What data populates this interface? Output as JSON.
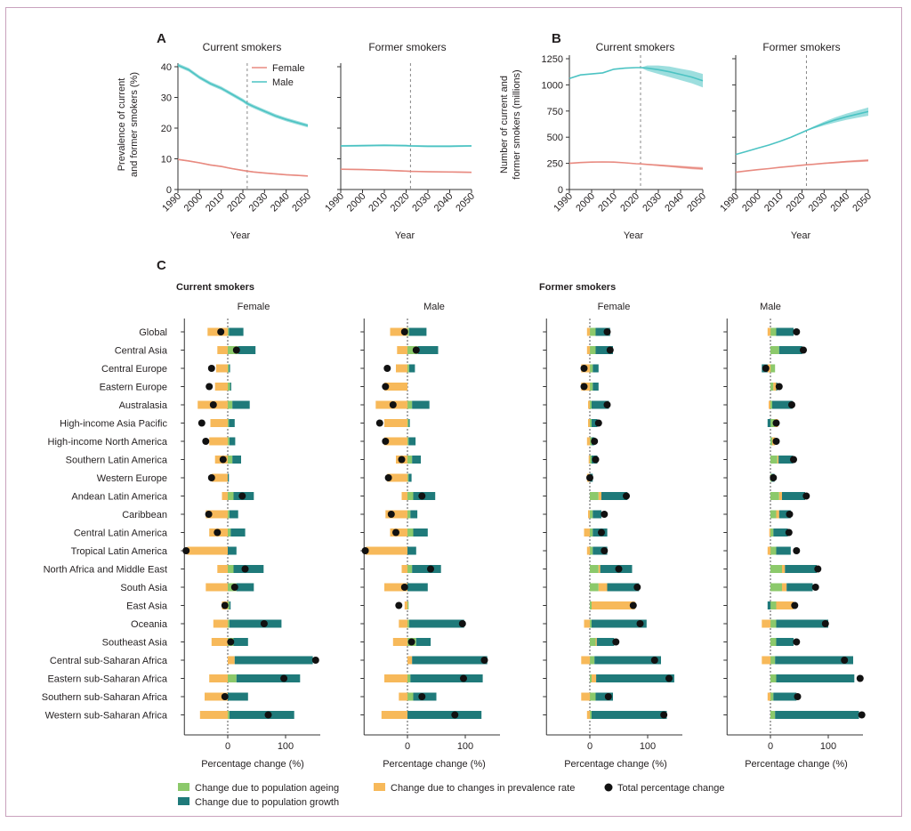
{
  "colors": {
    "female": "#e88a80",
    "male": "#4cc3c3",
    "ageing": "#8cc96b",
    "prevalence": "#f7b95a",
    "growth": "#1f7a7a",
    "total": "#111111",
    "dashed": "#888888"
  },
  "chart_data": [
    {
      "id": "A",
      "type": "line",
      "panel_letter": "A",
      "ylabel_line1": "Prevalence of current",
      "ylabel_line2": "and former smokers (%)",
      "ylim": [
        0,
        40
      ],
      "yticks": [
        "0",
        "10",
        "20",
        "30",
        "40"
      ],
      "xlim": [
        1990,
        2050
      ],
      "xticks": [
        "1990",
        "2000",
        "2010",
        "2020",
        "2030",
        "2040",
        "2050"
      ],
      "xlabel": "Year",
      "forecast_start": 2022,
      "legend": [
        {
          "name": "Female"
        },
        {
          "name": "Male"
        }
      ],
      "subplots": [
        {
          "title": "Current smokers",
          "x": [
            1990,
            1995,
            2000,
            2005,
            2010,
            2015,
            2020,
            2022,
            2025,
            2030,
            2035,
            2040,
            2045,
            2050
          ],
          "series": [
            {
              "name": "Male",
              "values": [
                40.5,
                39.0,
                36.5,
                34.5,
                33.0,
                31.0,
                29.0,
                28.0,
                27.0,
                25.5,
                24.0,
                22.8,
                21.8,
                20.8
              ],
              "band": 0.6
            },
            {
              "name": "Female",
              "values": [
                9.8,
                9.3,
                8.7,
                8.0,
                7.5,
                6.8,
                6.2,
                6.0,
                5.7,
                5.4,
                5.1,
                4.8,
                4.6,
                4.4
              ],
              "band": 0.2
            }
          ]
        },
        {
          "title": "Former smokers",
          "x": [
            1990,
            2000,
            2010,
            2020,
            2022,
            2030,
            2040,
            2050
          ],
          "series": [
            {
              "name": "Male",
              "values": [
                14.2,
                14.3,
                14.4,
                14.3,
                14.2,
                14.1,
                14.1,
                14.2
              ],
              "band": 0.3
            },
            {
              "name": "Female",
              "values": [
                6.6,
                6.5,
                6.3,
                6.0,
                5.9,
                5.8,
                5.7,
                5.6
              ],
              "band": 0.2
            }
          ]
        }
      ]
    },
    {
      "id": "B",
      "type": "line",
      "panel_letter": "B",
      "ylabel_line1": "Number of current and",
      "ylabel_line2": "former smokers (millions)",
      "ylim": [
        0,
        1250
      ],
      "yticks": [
        "0",
        "250",
        "500",
        "750",
        "1000",
        "1250"
      ],
      "xlim": [
        1990,
        2050
      ],
      "xticks": [
        "1990",
        "2000",
        "2010",
        "2020",
        "2030",
        "2040",
        "2050"
      ],
      "xlabel": "Year",
      "forecast_start": 2022,
      "subplots": [
        {
          "title": "Current smokers",
          "x": [
            1990,
            1995,
            2000,
            2005,
            2010,
            2015,
            2020,
            2022,
            2025,
            2030,
            2035,
            2040,
            2045,
            2050
          ],
          "series": [
            {
              "name": "Male",
              "values": [
                1060,
                1095,
                1105,
                1115,
                1150,
                1160,
                1165,
                1165,
                1160,
                1145,
                1125,
                1100,
                1075,
                1040
              ],
              "band_up": [
                0,
                0,
                0,
                0,
                0,
                0,
                0,
                0,
                25,
                40,
                50,
                55,
                60,
                65
              ],
              "band_dn": [
                0,
                0,
                0,
                0,
                0,
                0,
                0,
                0,
                25,
                40,
                50,
                55,
                60,
                65
              ]
            },
            {
              "name": "Female",
              "values": [
                250,
                258,
                262,
                264,
                262,
                255,
                247,
                245,
                240,
                232,
                224,
                215,
                207,
                200
              ],
              "band_up": [
                0,
                0,
                0,
                0,
                0,
                0,
                0,
                0,
                5,
                8,
                10,
                12,
                13,
                14
              ],
              "band_dn": [
                0,
                0,
                0,
                0,
                0,
                0,
                0,
                0,
                5,
                8,
                10,
                12,
                13,
                14
              ]
            }
          ]
        },
        {
          "title": "Former smokers",
          "x": [
            1990,
            1995,
            2000,
            2005,
            2010,
            2015,
            2020,
            2022,
            2025,
            2030,
            2035,
            2040,
            2045,
            2050
          ],
          "series": [
            {
              "name": "Male",
              "values": [
                335,
                365,
                395,
                425,
                460,
                500,
                545,
                565,
                590,
                630,
                665,
                695,
                720,
                745
              ],
              "band_up": [
                0,
                0,
                0,
                0,
                0,
                0,
                0,
                5,
                10,
                18,
                25,
                30,
                35,
                40
              ],
              "band_dn": [
                0,
                0,
                0,
                0,
                0,
                0,
                0,
                5,
                10,
                18,
                25,
                30,
                35,
                40
              ]
            },
            {
              "name": "Female",
              "values": [
                165,
                178,
                190,
                200,
                212,
                222,
                232,
                236,
                241,
                250,
                258,
                266,
                272,
                278
              ],
              "band_up": [
                0,
                0,
                0,
                0,
                0,
                0,
                0,
                2,
                4,
                6,
                8,
                9,
                10,
                11
              ],
              "band_dn": [
                0,
                0,
                0,
                0,
                0,
                0,
                0,
                2,
                4,
                6,
                8,
                9,
                10,
                11
              ]
            }
          ]
        }
      ]
    },
    {
      "id": "C",
      "type": "bar",
      "panel_letter": "C",
      "stacked": true,
      "group_current": "Current smokers",
      "group_former": "Former smokers",
      "xlabel": "Percentage change (%)",
      "xticks": [
        "0",
        "100"
      ],
      "xlim": [
        -75,
        160
      ],
      "categories": [
        "Global",
        "Central Asia",
        "Central Europe",
        "Eastern Europe",
        "Australasia",
        "High-income Asia Pacific",
        "High-income North America",
        "Southern Latin America",
        "Western Europe",
        "Andean Latin America",
        "Caribbean",
        "Central Latin America",
        "Tropical Latin America",
        "North Africa and Middle East",
        "South Asia",
        "East Asia",
        "Oceania",
        "Southeast Asia",
        "Central sub-Saharan Africa",
        "Eastern sub-Saharan Africa",
        "Southern sub-Saharan Africa",
        "Western sub-Saharan Africa"
      ],
      "component_order": [
        "ageing",
        "prevalence",
        "growth"
      ],
      "legend": [
        {
          "key": "ageing",
          "label": "Change due to population ageing"
        },
        {
          "key": "prevalence",
          "label": "Change due to changes in prevalence rate"
        },
        {
          "key": "total",
          "label": "Total percentage change"
        },
        {
          "key": "growth",
          "label": "Change due to population growth"
        }
      ],
      "panels": [
        {
          "title": "Female",
          "group": "Current smokers",
          "ageing": [
            2,
            18,
            2,
            4,
            8,
            2,
            3,
            8,
            0,
            10,
            3,
            5,
            0,
            10,
            15,
            3,
            3,
            10,
            0,
            15,
            0,
            3
          ],
          "prevalence": [
            -35,
            -18,
            -20,
            -22,
            -52,
            -30,
            -32,
            -22,
            -28,
            -10,
            -38,
            -32,
            -70,
            -18,
            -38,
            -10,
            -25,
            -28,
            12,
            -32,
            -40,
            -48
          ],
          "growth": [
            25,
            30,
            2,
            2,
            30,
            10,
            10,
            15,
            2,
            35,
            15,
            25,
            15,
            52,
            30,
            2,
            90,
            25,
            135,
            110,
            35,
            112
          ],
          "total": [
            -12,
            15,
            -28,
            -32,
            -25,
            -45,
            -38,
            -8,
            -28,
            25,
            -33,
            -18,
            -72,
            30,
            12,
            -5,
            63,
            5,
            152,
            97,
            -5,
            70
          ]
        },
        {
          "title": "Male",
          "group": "Current smokers",
          "ageing": [
            3,
            18,
            3,
            0,
            8,
            2,
            2,
            8,
            2,
            10,
            5,
            10,
            0,
            8,
            0,
            2,
            3,
            15,
            0,
            5,
            10,
            0
          ],
          "prevalence": [
            -30,
            -18,
            -20,
            -40,
            -55,
            -40,
            -40,
            -20,
            -35,
            -10,
            -38,
            -30,
            -72,
            -10,
            -40,
            -5,
            -15,
            -25,
            8,
            -40,
            -15,
            -45
          ],
          "growth": [
            30,
            35,
            10,
            0,
            30,
            2,
            12,
            15,
            5,
            38,
            12,
            25,
            15,
            50,
            35,
            0,
            95,
            25,
            130,
            125,
            40,
            128
          ],
          "total": [
            -5,
            15,
            -35,
            -38,
            -25,
            -48,
            -38,
            -10,
            -33,
            25,
            -28,
            -20,
            -73,
            40,
            -5,
            -15,
            95,
            7,
            133,
            97,
            25,
            82
          ]
        },
        {
          "title": "Female",
          "group": "Former smokers",
          "ageing": [
            10,
            10,
            5,
            5,
            3,
            3,
            3,
            3,
            0,
            15,
            5,
            5,
            5,
            15,
            15,
            3,
            3,
            10,
            8,
            3,
            10,
            3
          ],
          "prevalence": [
            -5,
            -5,
            -15,
            -15,
            -3,
            -3,
            -5,
            -2,
            -5,
            5,
            -3,
            -10,
            -5,
            3,
            15,
            75,
            -10,
            2,
            -15,
            8,
            -15,
            -5
          ],
          "growth": [
            25,
            30,
            10,
            10,
            30,
            10,
            5,
            10,
            5,
            45,
            15,
            25,
            25,
            55,
            55,
            0,
            95,
            30,
            115,
            135,
            30,
            130
          ],
          "total": [
            30,
            35,
            -10,
            -10,
            30,
            15,
            8,
            10,
            0,
            63,
            25,
            20,
            25,
            50,
            82,
            75,
            87,
            45,
            112,
            137,
            32,
            128
          ]
        },
        {
          "title": "Male",
          "group": "Former smokers",
          "ageing": [
            10,
            15,
            8,
            5,
            3,
            8,
            3,
            12,
            2,
            15,
            10,
            5,
            10,
            20,
            20,
            10,
            10,
            10,
            8,
            10,
            5,
            8
          ],
          "prevalence": [
            -5,
            0,
            -5,
            5,
            -3,
            5,
            5,
            2,
            0,
            5,
            5,
            -2,
            -5,
            5,
            8,
            30,
            -15,
            0,
            -15,
            0,
            -5,
            0
          ],
          "growth": [
            30,
            40,
            -10,
            2,
            35,
            -5,
            0,
            25,
            5,
            40,
            20,
            25,
            25,
            55,
            45,
            -5,
            90,
            30,
            135,
            135,
            40,
            145
          ],
          "total": [
            45,
            57,
            -8,
            15,
            37,
            10,
            10,
            40,
            5,
            62,
            33,
            32,
            45,
            82,
            78,
            42,
            95,
            45,
            128,
            155,
            47,
            158
          ]
        }
      ]
    }
  ]
}
